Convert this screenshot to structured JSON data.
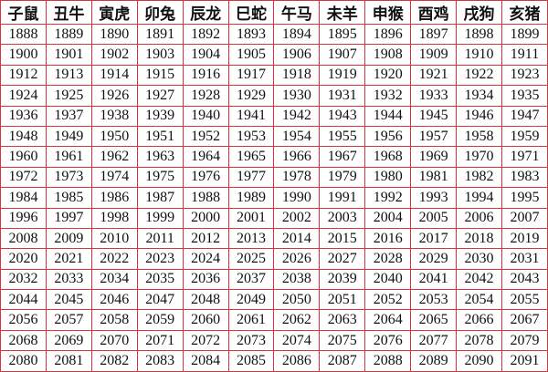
{
  "table": {
    "header": [
      "子鼠",
      "丑牛",
      "寅虎",
      "卯兔",
      "辰龙",
      "巳蛇",
      "午马",
      "未羊",
      "申猴",
      "酉鸡",
      "戌狗",
      "亥猪"
    ],
    "rows": [
      [
        1888,
        1889,
        1890,
        1891,
        1892,
        1893,
        1894,
        1895,
        1896,
        1897,
        1898,
        1899
      ],
      [
        1900,
        1901,
        1902,
        1903,
        1904,
        1905,
        1906,
        1907,
        1908,
        1909,
        1910,
        1911
      ],
      [
        1912,
        1913,
        1914,
        1915,
        1916,
        1917,
        1918,
        1919,
        1920,
        1921,
        1922,
        1923
      ],
      [
        1924,
        1925,
        1926,
        1927,
        1928,
        1929,
        1930,
        1931,
        1932,
        1933,
        1934,
        1935
      ],
      [
        1936,
        1937,
        1938,
        1939,
        1940,
        1941,
        1942,
        1943,
        1944,
        1945,
        1946,
        1947
      ],
      [
        1948,
        1949,
        1950,
        1951,
        1952,
        1953,
        1954,
        1955,
        1956,
        1957,
        1958,
        1959
      ],
      [
        1960,
        1961,
        1962,
        1963,
        1964,
        1965,
        1966,
        1967,
        1968,
        1969,
        1970,
        1971
      ],
      [
        1972,
        1973,
        1974,
        1975,
        1976,
        1977,
        1978,
        1979,
        1980,
        1981,
        1982,
        1983
      ],
      [
        1984,
        1985,
        1986,
        1987,
        1988,
        1989,
        1990,
        1991,
        1992,
        1993,
        1994,
        1995
      ],
      [
        1996,
        1997,
        1998,
        1999,
        2000,
        2001,
        2002,
        2003,
        2004,
        2005,
        2006,
        2007
      ],
      [
        2008,
        2009,
        2010,
        2011,
        2012,
        2013,
        2014,
        2015,
        2016,
        2017,
        2018,
        2019
      ],
      [
        2020,
        2021,
        2022,
        2023,
        2024,
        2025,
        2026,
        2027,
        2028,
        2029,
        2030,
        2031
      ],
      [
        2032,
        2033,
        2034,
        2035,
        2036,
        2037,
        2038,
        2039,
        2040,
        2041,
        2042,
        2043
      ],
      [
        2044,
        2045,
        2046,
        2047,
        2048,
        2049,
        2050,
        2051,
        2052,
        2053,
        2054,
        2055
      ],
      [
        2056,
        2057,
        2058,
        2059,
        2060,
        2061,
        2062,
        2063,
        2064,
        2065,
        2066,
        2067
      ],
      [
        2068,
        2069,
        2070,
        2071,
        2072,
        2073,
        2074,
        2075,
        2076,
        2077,
        2078,
        2079
      ],
      [
        2080,
        2081,
        2082,
        2083,
        2084,
        2085,
        2086,
        2087,
        2088,
        2089,
        2090,
        2091
      ]
    ]
  }
}
